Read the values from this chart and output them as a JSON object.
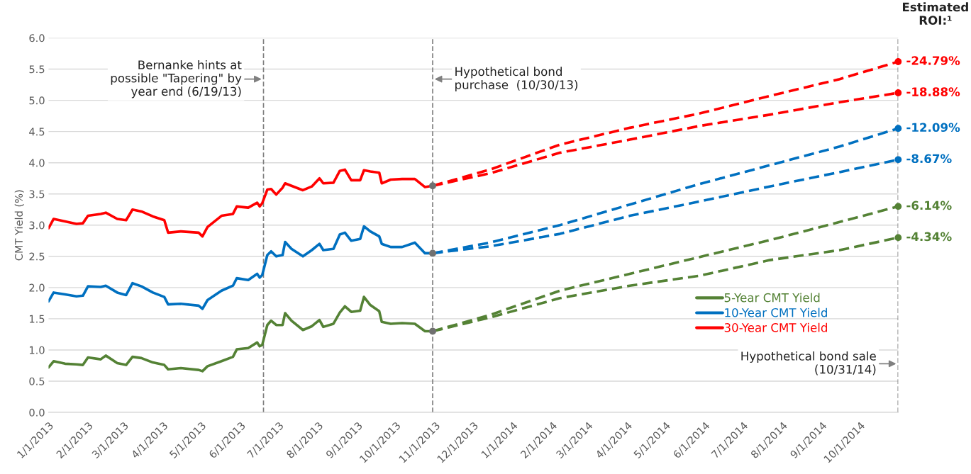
{
  "chart_data": {
    "type": "line",
    "ylabel": "CMT Yield (%)",
    "xlim": [
      "2013-01-01",
      "2014-10-31"
    ],
    "xticks": [
      {
        "value": "2013-01-01",
        "label": "1/1/2013"
      },
      {
        "value": "2013-02-01",
        "label": "2/1/2013"
      },
      {
        "value": "2013-03-01",
        "label": "3/1/2013"
      },
      {
        "value": "2013-04-01",
        "label": "4/1/2013"
      },
      {
        "value": "2013-05-01",
        "label": "5/1/2013"
      },
      {
        "value": "2013-06-01",
        "label": "6/1/2013"
      },
      {
        "value": "2013-07-01",
        "label": "7/1/2013"
      },
      {
        "value": "2013-08-01",
        "label": "8/1/2013"
      },
      {
        "value": "2013-09-01",
        "label": "9/1/2013"
      },
      {
        "value": "2013-10-01",
        "label": "10/1/2013"
      },
      {
        "value": "2013-11-01",
        "label": "11/1/2013"
      },
      {
        "value": "2013-12-01",
        "label": "12/1/2013"
      },
      {
        "value": "2014-01-01",
        "label": "1/1/2014"
      },
      {
        "value": "2014-02-01",
        "label": "2/1/2014"
      },
      {
        "value": "2014-03-01",
        "label": "3/1/2014"
      },
      {
        "value": "2014-04-01",
        "label": "4/1/2014"
      },
      {
        "value": "2014-05-01",
        "label": "5/1/2014"
      },
      {
        "value": "2014-06-01",
        "label": "6/1/2014"
      },
      {
        "value": "2014-07-01",
        "label": "7/1/2014"
      },
      {
        "value": "2014-08-01",
        "label": "8/1/2014"
      },
      {
        "value": "2014-09-01",
        "label": "9/1/2014"
      },
      {
        "value": "2014-10-01",
        "label": "10/1/2014"
      }
    ],
    "ylim": [
      0,
      6
    ],
    "yticks": [
      {
        "value": 0,
        "label": "0.0"
      },
      {
        "value": 0.5,
        "label": "0.5"
      },
      {
        "value": 1,
        "label": "1.0"
      },
      {
        "value": 1.5,
        "label": "1.5"
      },
      {
        "value": 2,
        "label": "2.0"
      },
      {
        "value": 2.5,
        "label": "2.5"
      },
      {
        "value": 3,
        "label": "3.0"
      },
      {
        "value": 3.5,
        "label": "3.5"
      },
      {
        "value": 4,
        "label": "4.0"
      },
      {
        "value": 4.5,
        "label": "4.5"
      },
      {
        "value": 5,
        "label": "5.0"
      },
      {
        "value": 5.5,
        "label": "5.5"
      },
      {
        "value": 6,
        "label": "6.0"
      }
    ],
    "grid": "y",
    "legend": "bottom right",
    "marker": "none",
    "x": [
      "2013-01-01",
      "2013-01-05",
      "2013-01-14",
      "2013-01-23",
      "2013-01-28",
      "2013-02-01",
      "2013-02-11",
      "2013-02-15",
      "2013-02-24",
      "2013-03-03",
      "2013-03-08",
      "2013-03-15",
      "2013-03-24",
      "2013-04-02",
      "2013-04-05",
      "2013-04-15",
      "2013-04-29",
      "2013-05-02",
      "2013-05-06",
      "2013-05-17",
      "2013-05-26",
      "2013-05-29",
      "2013-06-07",
      "2013-06-14",
      "2013-06-16",
      "2013-06-18",
      "2013-06-22",
      "2013-06-25",
      "2013-06-29",
      "2013-07-04",
      "2013-07-06",
      "2013-07-11",
      "2013-07-20",
      "2013-07-27",
      "2013-08-02",
      "2013-08-05",
      "2013-08-13",
      "2013-08-18",
      "2013-08-22",
      "2013-08-27",
      "2013-09-03",
      "2013-09-06",
      "2013-09-11",
      "2013-09-18",
      "2013-09-20",
      "2013-09-27",
      "2013-10-06",
      "2013-10-16",
      "2013-10-24",
      "2013-10-30"
    ],
    "series": [
      {
        "name": "5-Year CMT Yield",
        "color": "#548235",
        "line_style": "solid",
        "values": [
          0.72,
          0.82,
          0.78,
          0.77,
          0.76,
          0.88,
          0.85,
          0.91,
          0.79,
          0.76,
          0.89,
          0.87,
          0.8,
          0.76,
          0.69,
          0.71,
          0.68,
          0.66,
          0.74,
          0.82,
          0.89,
          1.01,
          1.03,
          1.12,
          1.06,
          1.08,
          1.4,
          1.47,
          1.4,
          1.4,
          1.59,
          1.47,
          1.32,
          1.38,
          1.48,
          1.37,
          1.42,
          1.6,
          1.7,
          1.61,
          1.63,
          1.85,
          1.72,
          1.62,
          1.45,
          1.42,
          1.43,
          1.42,
          1.3,
          1.3
        ]
      },
      {
        "name": "10-Year CMT Yield",
        "color": "#0070c0",
        "line_style": "solid",
        "values": [
          1.78,
          1.92,
          1.89,
          1.86,
          1.87,
          2.02,
          2.01,
          2.03,
          1.92,
          1.88,
          2.07,
          2.02,
          1.92,
          1.85,
          1.73,
          1.74,
          1.71,
          1.66,
          1.8,
          1.95,
          2.03,
          2.15,
          2.12,
          2.22,
          2.16,
          2.2,
          2.52,
          2.58,
          2.5,
          2.52,
          2.73,
          2.62,
          2.5,
          2.6,
          2.7,
          2.6,
          2.62,
          2.85,
          2.88,
          2.75,
          2.78,
          2.98,
          2.9,
          2.82,
          2.7,
          2.65,
          2.65,
          2.72,
          2.55,
          2.55
        ]
      },
      {
        "name": "30-Year CMT Yield",
        "color": "#ff0000",
        "line_style": "solid",
        "values": [
          2.95,
          3.1,
          3.06,
          3.02,
          3.03,
          3.15,
          3.18,
          3.2,
          3.1,
          3.08,
          3.25,
          3.22,
          3.14,
          3.08,
          2.88,
          2.9,
          2.88,
          2.82,
          2.97,
          3.15,
          3.18,
          3.3,
          3.28,
          3.36,
          3.3,
          3.35,
          3.57,
          3.58,
          3.49,
          3.6,
          3.67,
          3.63,
          3.56,
          3.62,
          3.75,
          3.67,
          3.68,
          3.87,
          3.89,
          3.72,
          3.72,
          3.88,
          3.86,
          3.84,
          3.67,
          3.73,
          3.74,
          3.74,
          3.61,
          3.63
        ]
      },
      {
        "color": "#ff0000",
        "line_style": "dashed",
        "x": [
          "2013-10-30",
          "2013-12-14",
          "2014-02-07",
          "2014-04-03",
          "2014-05-28",
          "2014-07-22",
          "2014-09-15",
          "2014-10-31"
        ],
        "values": [
          3.63,
          3.89,
          4.29,
          4.56,
          4.79,
          5.07,
          5.34,
          5.62
        ]
      },
      {
        "color": "#ff0000",
        "line_style": "dashed",
        "x": [
          "2013-10-30",
          "2013-12-14",
          "2014-02-07",
          "2014-04-03",
          "2014-05-28",
          "2014-07-22",
          "2014-09-15",
          "2014-10-31"
        ],
        "values": [
          3.63,
          3.83,
          4.16,
          4.37,
          4.59,
          4.77,
          4.97,
          5.12
        ]
      },
      {
        "color": "#0070c0",
        "line_style": "dashed",
        "x": [
          "2013-10-30",
          "2013-12-14",
          "2014-02-07",
          "2014-04-03",
          "2014-05-28",
          "2014-07-22",
          "2014-09-15",
          "2014-10-31"
        ],
        "values": [
          2.55,
          2.72,
          3.0,
          3.33,
          3.66,
          3.96,
          4.26,
          4.55
        ]
      },
      {
        "color": "#0070c0",
        "line_style": "dashed",
        "x": [
          "2013-10-30",
          "2013-12-14",
          "2014-02-07",
          "2014-04-03",
          "2014-05-28",
          "2014-07-22",
          "2014-09-15",
          "2014-10-31"
        ],
        "values": [
          2.55,
          2.66,
          2.86,
          3.15,
          3.38,
          3.62,
          3.85,
          4.05
        ]
      },
      {
        "color": "#548235",
        "line_style": "dashed",
        "x": [
          "2013-10-30",
          "2013-12-14",
          "2014-02-07",
          "2014-04-03",
          "2014-05-28",
          "2014-07-22",
          "2014-09-15",
          "2014-10-31"
        ],
        "values": [
          1.3,
          1.56,
          1.95,
          2.22,
          2.49,
          2.76,
          3.05,
          3.3
        ]
      },
      {
        "color": "#548235",
        "line_style": "dashed",
        "x": [
          "2013-10-30",
          "2013-12-14",
          "2014-02-07",
          "2014-04-03",
          "2014-05-28",
          "2014-07-22",
          "2014-09-15",
          "2014-10-31"
        ],
        "values": [
          1.3,
          1.52,
          1.83,
          2.03,
          2.19,
          2.44,
          2.6,
          2.8
        ]
      },
      {
        "type": "scatter",
        "marker": "circle",
        "x": [
          "2013-10-30",
          "2013-10-30",
          "2013-10-30",
          "2014-10-31",
          "2014-10-31",
          "2014-10-31",
          "2014-10-31",
          "2014-10-31",
          "2014-10-31"
        ],
        "values": [
          3.63,
          2.55,
          1.3,
          5.62,
          5.12,
          4.55,
          4.05,
          3.3,
          2.8
        ],
        "colors": [
          "#707070",
          "#707070",
          "#707070",
          "#ff0000",
          "#ff0000",
          "#0070c0",
          "#0070c0",
          "#548235",
          "#548235"
        ]
      }
    ],
    "ref_lines": [
      {
        "axis": "x",
        "value": "2013-06-19",
        "color": "#808080",
        "line_style": "dashed",
        "label": "Bernanke hints at\npossible \"Tapering\" by\nyear end (6/19/13)"
      },
      {
        "axis": "x",
        "value": "2013-10-30",
        "color": "#808080",
        "line_style": "dashed",
        "label": "Hypothetical bond\npurchase  (10/30/13)"
      },
      {
        "axis": "x",
        "value": "2014-10-31",
        "color": "#808080",
        "line_style": "dashed",
        "label": "Hypothetical bond sale\n(10/31/14)"
      }
    ],
    "annotations": [
      {
        "text": "-24.79%",
        "x": "2014-10-31",
        "y": 5.62
      },
      {
        "text": "-18.88%",
        "x": "2014-10-31",
        "y": 5.12
      },
      {
        "text": "-12.09%",
        "x": "2014-10-31",
        "y": 4.55
      },
      {
        "text": "-8.67%",
        "x": "2014-10-31",
        "y": 4.05
      },
      {
        "text": "-6.14%",
        "x": "2014-10-31",
        "y": 3.3
      },
      {
        "text": "-4.34%",
        "x": "2014-10-31",
        "y": 2.8
      },
      "Estimated\nROI:¹"
    ]
  }
}
